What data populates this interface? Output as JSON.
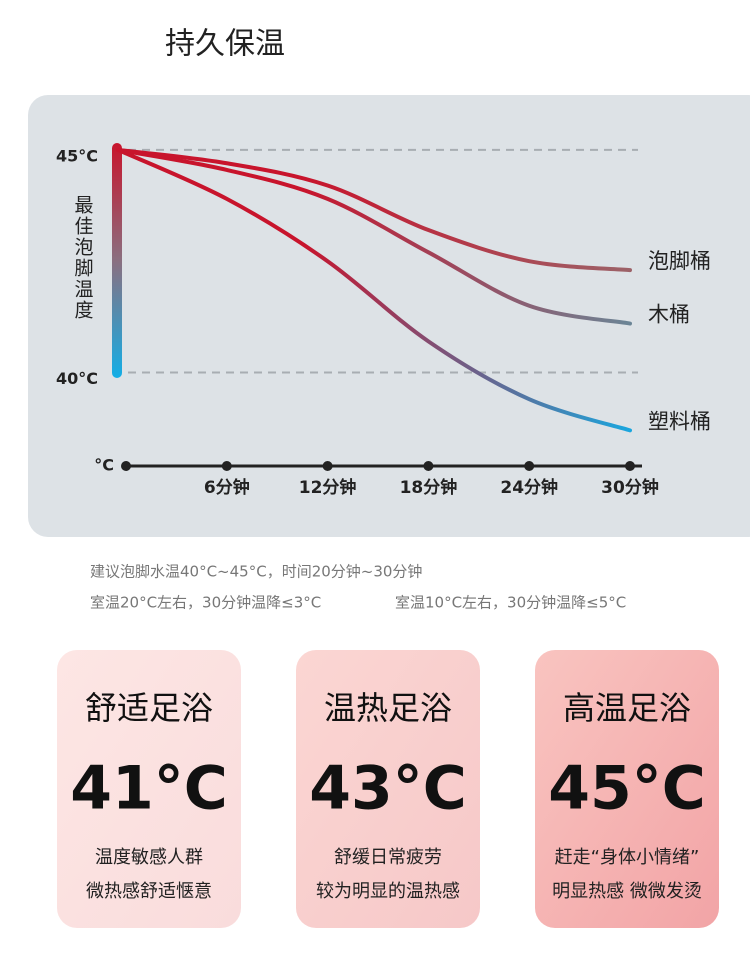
{
  "header": {
    "title": "持久保温"
  },
  "chart_data": {
    "type": "line",
    "y_label": "最佳泡脚温度",
    "axis_unit_label": "°C",
    "categories": [
      null,
      "6分钟",
      "12分钟",
      "18分钟",
      "24分钟",
      "30分钟"
    ],
    "ylim": [
      37.9,
      45.2
    ],
    "yticks": [
      {
        "value": 45,
        "label": "45°C"
      },
      {
        "value": 40,
        "label": "40°C"
      }
    ],
    "grid": true,
    "gradient_start": "#c8142c",
    "series": [
      {
        "name": "泡脚桶",
        "color": "#9c6268",
        "values": [
          45,
          44.7,
          44.2,
          43.2,
          42.5,
          42.3
        ]
      },
      {
        "name": "木桶",
        "color": "#6b8596",
        "values": [
          45,
          44.55,
          43.9,
          42.7,
          41.5,
          41.1
        ]
      },
      {
        "name": "塑料桶",
        "color": "#1aa6de",
        "values": [
          45,
          43.9,
          42.5,
          40.7,
          39.4,
          38.7
        ]
      }
    ]
  },
  "notes": [
    [
      "建议泡脚水温40°C~45°C，时间20分钟~30分钟"
    ],
    [
      "室温20°C左右，30分钟温降≤3°C",
      "室温10°C左右，30分钟温降≤5°C"
    ]
  ],
  "cards": [
    {
      "title": "舒适足浴",
      "temp": "41°C",
      "lines": [
        "温度敏感人群",
        "微热感舒适惬意"
      ]
    },
    {
      "title": "温热足浴",
      "temp": "43°C",
      "lines": [
        "舒缓日常疲劳",
        "较为明显的温热感"
      ]
    },
    {
      "title": "高温足浴",
      "temp": "45°C",
      "lines": [
        "赶走“身体小情绪”",
        "明显热感 微微发烫"
      ]
    }
  ]
}
